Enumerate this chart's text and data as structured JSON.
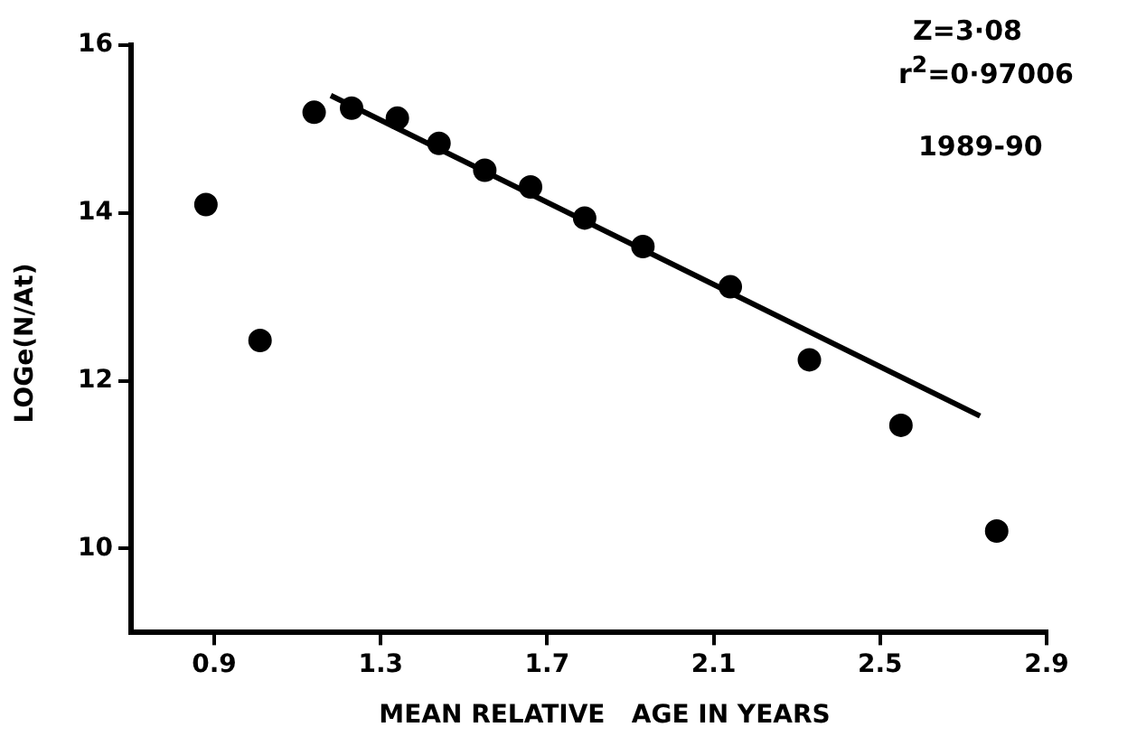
{
  "chart_data": {
    "type": "scatter",
    "xlabel": "MEAN RELATIVE   AGE IN YEARS",
    "ylabel": "LOGe(N/At)",
    "xlim": [
      0.7,
      2.9
    ],
    "ylim": [
      9,
      16
    ],
    "xticks": [
      0.9,
      1.3,
      1.7,
      2.1,
      2.5,
      2.9
    ],
    "yticks": [
      10,
      12,
      14,
      16
    ],
    "series": [
      {
        "type": "scatter",
        "color": "#000000",
        "marker": "circle",
        "x": [
          0.88,
          1.01,
          1.14,
          1.23,
          1.34,
          1.44,
          1.55,
          1.66,
          1.79,
          1.93,
          2.14,
          2.33,
          2.55,
          2.78
        ],
        "values": [
          14.1,
          12.48,
          15.2,
          15.25,
          15.13,
          14.83,
          14.51,
          14.31,
          13.94,
          13.6,
          13.12,
          12.25,
          11.47,
          10.21
        ]
      },
      {
        "type": "line",
        "color": "#000000",
        "marker": "none",
        "line_style": "solid",
        "x": [
          1.18,
          2.74
        ],
        "values": [
          15.4,
          11.58
        ]
      }
    ],
    "annotations": [
      "Z=3·08",
      "r$^{2}$=0·97006",
      "1989-90"
    ],
    "grid": false,
    "legend": false
  }
}
